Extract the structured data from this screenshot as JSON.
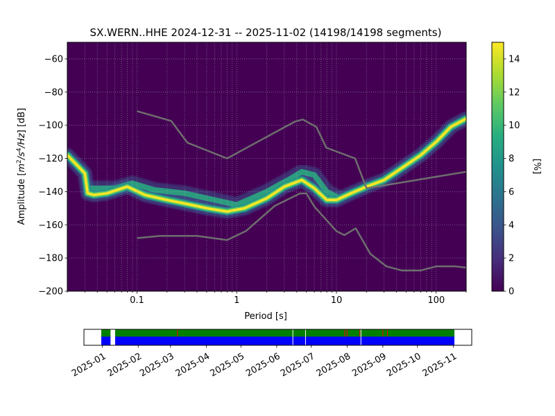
{
  "chart_data": [
    {
      "type": "heatmap",
      "title": "SX.WERN..HHE   2024-12-31 -- 2025-11-02  (14198/14198 segments)",
      "xlabel": "Period [s]",
      "ylabel_parts": [
        "Amplitude [",
        "m",
        "2",
        "/s",
        "4",
        "/Hz",
        "] [dB]"
      ],
      "x_scale": "log",
      "xlim": [
        0.02,
        200
      ],
      "ylim": [
        -200,
        -50
      ],
      "x_ticks": [
        {
          "value": 0.1,
          "label": "0.1"
        },
        {
          "value": 1,
          "label": "1"
        },
        {
          "value": 10,
          "label": "10"
        },
        {
          "value": 100,
          "label": "100"
        }
      ],
      "y_ticks": [
        {
          "value": -60,
          "label": "−60"
        },
        {
          "value": -80,
          "label": "−80"
        },
        {
          "value": -100,
          "label": "−100"
        },
        {
          "value": -120,
          "label": "−120"
        },
        {
          "value": -140,
          "label": "−140"
        },
        {
          "value": -160,
          "label": "−160"
        },
        {
          "value": -180,
          "label": "−180"
        },
        {
          "value": -200,
          "label": "−200"
        }
      ],
      "grid": true,
      "colorbar": {
        "label": "[%]",
        "range": [
          0,
          15
        ],
        "ticks": [
          {
            "value": 0,
            "label": "0"
          },
          {
            "value": 2,
            "label": "2"
          },
          {
            "value": 4,
            "label": "4"
          },
          {
            "value": 6,
            "label": "6"
          },
          {
            "value": 8,
            "label": "8"
          },
          {
            "value": 10,
            "label": "10"
          },
          {
            "value": 12,
            "label": "12"
          },
          {
            "value": 14,
            "label": "14"
          }
        ],
        "colormap": [
          "#440154",
          "#472d7b",
          "#3b528b",
          "#2c728e",
          "#21918c",
          "#28ae80",
          "#5ec962",
          "#addc30",
          "#fde725"
        ]
      },
      "background_color": "#440154",
      "reference_color": "#6e6e6e",
      "psd_peak": [
        [
          0.02,
          -118
        ],
        [
          0.025,
          -124
        ],
        [
          0.03,
          -129
        ],
        [
          0.032,
          -141
        ],
        [
          0.037,
          -142
        ],
        [
          0.05,
          -141
        ],
        [
          0.08,
          -137
        ],
        [
          0.12,
          -142
        ],
        [
          0.2,
          -145
        ],
        [
          0.35,
          -148
        ],
        [
          0.5,
          -150
        ],
        [
          0.8,
          -152
        ],
        [
          1.2,
          -150
        ],
        [
          2,
          -144
        ],
        [
          3,
          -137
        ],
        [
          4.5,
          -133
        ],
        [
          6,
          -138
        ],
        [
          8,
          -145
        ],
        [
          10,
          -145
        ],
        [
          14,
          -141
        ],
        [
          20,
          -137
        ],
        [
          30,
          -133
        ],
        [
          50,
          -124
        ],
        [
          70,
          -118
        ],
        [
          100,
          -110
        ],
        [
          140,
          -101
        ],
        [
          200,
          -96
        ]
      ],
      "psd_secondary": [
        [
          0.035,
          -138
        ],
        [
          0.06,
          -138
        ],
        [
          0.09,
          -135
        ],
        [
          0.15,
          -139
        ],
        [
          0.3,
          -141
        ],
        [
          0.6,
          -145
        ],
        [
          1,
          -148
        ],
        [
          2,
          -140
        ],
        [
          3.5,
          -132
        ],
        [
          4.5,
          -128
        ],
        [
          6,
          -130
        ],
        [
          8,
          -140
        ],
        [
          10,
          -143
        ]
      ],
      "nhnm": [
        [
          0.1,
          -91.5
        ],
        [
          0.22,
          -97.4
        ],
        [
          0.32,
          -110.5
        ],
        [
          0.8,
          -120
        ],
        [
          3.8,
          -97.9
        ],
        [
          4.6,
          -96.5
        ],
        [
          6.3,
          -101
        ],
        [
          7.9,
          -113.5
        ],
        [
          15.4,
          -120
        ],
        [
          20,
          -138
        ],
        [
          200,
          -128
        ]
      ],
      "nlnm": [
        [
          0.1,
          -168
        ],
        [
          0.17,
          -166.7
        ],
        [
          0.4,
          -166.7
        ],
        [
          0.8,
          -169.2
        ],
        [
          1.24,
          -163.7
        ],
        [
          2.4,
          -148.6
        ],
        [
          4.3,
          -141.1
        ],
        [
          5.0,
          -141.1
        ],
        [
          6.0,
          -149
        ],
        [
          10.0,
          -163.8
        ],
        [
          12.0,
          -166.2
        ],
        [
          15.6,
          -162.1
        ],
        [
          21.9,
          -177.5
        ],
        [
          31.6,
          -185
        ],
        [
          45,
          -187.5
        ],
        [
          70,
          -187.5
        ],
        [
          101,
          -185
        ],
        [
          154,
          -185
        ],
        [
          200,
          -185.8
        ]
      ]
    },
    {
      "type": "timeline",
      "start_date": "2024-12-31",
      "end_date": "2025-11-02",
      "x_ticks": [
        {
          "date": "2025-01-01",
          "label": "2025-01"
        },
        {
          "date": "2025-02-01",
          "label": "2025-02"
        },
        {
          "date": "2025-03-01",
          "label": "2025-03"
        },
        {
          "date": "2025-04-01",
          "label": "2025-04"
        },
        {
          "date": "2025-05-01",
          "label": "2025-05"
        },
        {
          "date": "2025-06-01",
          "label": "2025-06"
        },
        {
          "date": "2025-07-01",
          "label": "2025-07"
        },
        {
          "date": "2025-08-01",
          "label": "2025-08"
        },
        {
          "date": "2025-09-01",
          "label": "2025-09"
        },
        {
          "date": "2025-10-01",
          "label": "2025-10"
        },
        {
          "date": "2025-11-01",
          "label": "2025-11"
        }
      ],
      "coverage_color": "#0000ff",
      "data_available_color": "#008000",
      "gap_color": "#ffffff",
      "marker_color": "#ff0000",
      "gaps": [
        {
          "start": "2025-01-08",
          "end": "2025-01-12"
        }
      ],
      "thin_gaps": [
        "2025-06-15",
        "2025-06-26",
        "2025-08-13"
      ],
      "red_markers": [
        "2025-03-07",
        "2025-07-30",
        "2025-08-01",
        "2025-08-12",
        "2025-09-01",
        "2025-09-05"
      ]
    }
  ]
}
